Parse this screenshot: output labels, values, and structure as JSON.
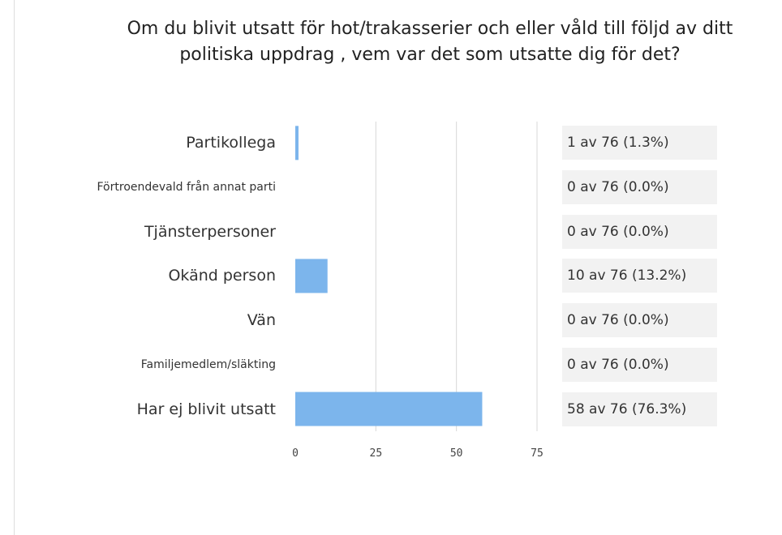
{
  "chart_data": {
    "type": "bar",
    "orientation": "horizontal",
    "title": "Om du blivit utsatt för hot/trakasserier och eller våld till följd av ditt politiska uppdrag , vem var det som utsatte dig för det?",
    "categories": [
      "Partikollega",
      "Förtroendevald från annat parti",
      "Tjänsterpersoner",
      "Okänd person",
      "Vän",
      "Familjemedlem/släkting",
      "Har ej blivit utsatt"
    ],
    "values": [
      1,
      0,
      0,
      10,
      0,
      0,
      58
    ],
    "value_labels": [
      "1 av 76 (1.3%)",
      "0 av 76 (0.0%)",
      "0 av 76 (0.0%)",
      "10 av 76 (13.2%)",
      "0 av 76 (0.0%)",
      "0 av 76 (0.0%)",
      "58 av 76 (76.3%)"
    ],
    "color": "#7cb5ec",
    "xlim": [
      0,
      75
    ],
    "xticks": [
      0,
      25,
      50,
      75
    ],
    "grid": true
  }
}
